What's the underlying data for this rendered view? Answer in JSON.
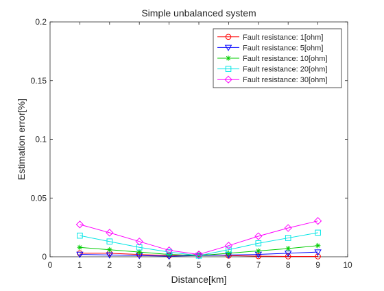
{
  "chart_data": {
    "type": "line",
    "title": "Simple unbalanced system",
    "xlabel": "Distance[km]",
    "ylabel": "Estimation error[%]",
    "xlim": [
      0,
      10
    ],
    "ylim": [
      0,
      0.2
    ],
    "xticks": [
      "0",
      "1",
      "2",
      "3",
      "4",
      "5",
      "6",
      "7",
      "8",
      "9",
      "10"
    ],
    "yticks": [
      "0",
      "0.05",
      "0.1",
      "0.15",
      "0.2"
    ],
    "grid": false,
    "legend_position": "top-right",
    "x": [
      1,
      2,
      3,
      4,
      5,
      6,
      7,
      8,
      9
    ],
    "series": [
      {
        "name": "Fault resistance: 1[ohm]",
        "color": "#ff0000",
        "marker": "circle",
        "values": [
          0.003,
          0.003,
          0.002,
          0.001,
          0.002,
          0.001,
          0.0005,
          0.0003,
          0.0003
        ]
      },
      {
        "name": "Fault resistance: 5[ohm]",
        "color": "#0000ff",
        "marker": "triangle-down",
        "values": [
          0.002,
          0.0015,
          0.001,
          0.0005,
          0.001,
          0.0015,
          0.002,
          0.003,
          0.004
        ]
      },
      {
        "name": "Fault resistance: 10[ohm]",
        "color": "#00cc00",
        "marker": "asterisk",
        "values": [
          0.008,
          0.006,
          0.004,
          0.002,
          0.001,
          0.003,
          0.005,
          0.007,
          0.0095
        ]
      },
      {
        "name": "Fault resistance: 20[ohm]",
        "color": "#00e5e5",
        "marker": "square",
        "values": [
          0.018,
          0.013,
          0.008,
          0.004,
          0.001,
          0.006,
          0.0115,
          0.016,
          0.0205
        ]
      },
      {
        "name": "Fault resistance: 30[ohm]",
        "color": "#ff00ff",
        "marker": "diamond",
        "values": [
          0.0275,
          0.0205,
          0.013,
          0.0055,
          0.002,
          0.0095,
          0.0175,
          0.0245,
          0.0305
        ]
      }
    ]
  }
}
